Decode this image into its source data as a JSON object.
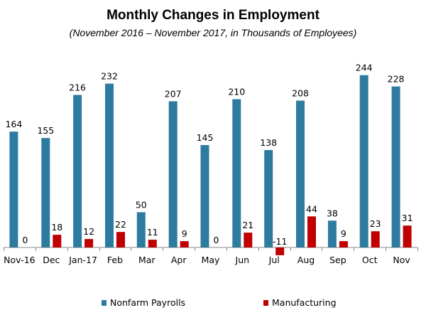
{
  "chart_data": {
    "type": "bar",
    "title": "Monthly Changes in Employment",
    "subtitle": "(November 2016 – November 2017, in Thousands of Employees)",
    "categories": [
      "Nov-16",
      "Dec",
      "Jan-17",
      "Feb",
      "Mar",
      "Apr",
      "May",
      "Jun",
      "Jul",
      "Aug",
      "Sep",
      "Oct",
      "Nov"
    ],
    "series": [
      {
        "name": "Nonfarm Payrolls",
        "color": "#2e7ba0",
        "values": [
          164,
          155,
          216,
          232,
          50,
          207,
          145,
          210,
          138,
          208,
          38,
          244,
          228
        ]
      },
      {
        "name": "Manufacturing",
        "color": "#c00000",
        "values": [
          0,
          18,
          12,
          22,
          11,
          9,
          0,
          21,
          -11,
          44,
          9,
          23,
          31
        ]
      }
    ],
    "ylim": [
      -11,
      244
    ],
    "grid": false,
    "legend": "bottom"
  }
}
